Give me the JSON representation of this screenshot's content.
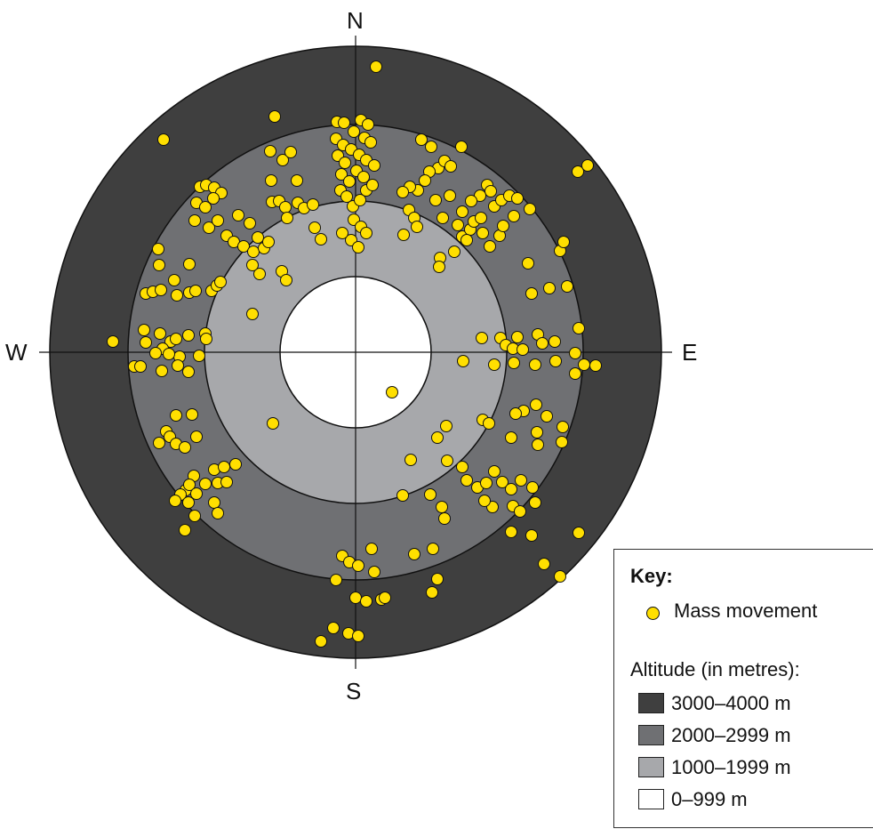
{
  "compass": {
    "north": "N",
    "south": "S",
    "west": "W",
    "east": "E"
  },
  "colors": {
    "band_3000_4000": "#3f3f3f",
    "band_2000_2999": "#6f7073",
    "band_1000_1999": "#a7a8ab",
    "band_0_999": "#ffffff",
    "mass_movement": "#ffdf00",
    "outline": "#111111"
  },
  "key": {
    "title": "Key:",
    "mass_movement_label": "Mass movement",
    "altitude_title": "Altitude (in metres):",
    "bands": [
      {
        "label": "3000–4000 m",
        "color": "#3f3f3f"
      },
      {
        "label": "2000–2999 m",
        "color": "#6f7073"
      },
      {
        "label": "1000–1999 m",
        "color": "#a7a8ab"
      },
      {
        "label": "0–999 m",
        "color": "#ffffff"
      }
    ]
  }
}
